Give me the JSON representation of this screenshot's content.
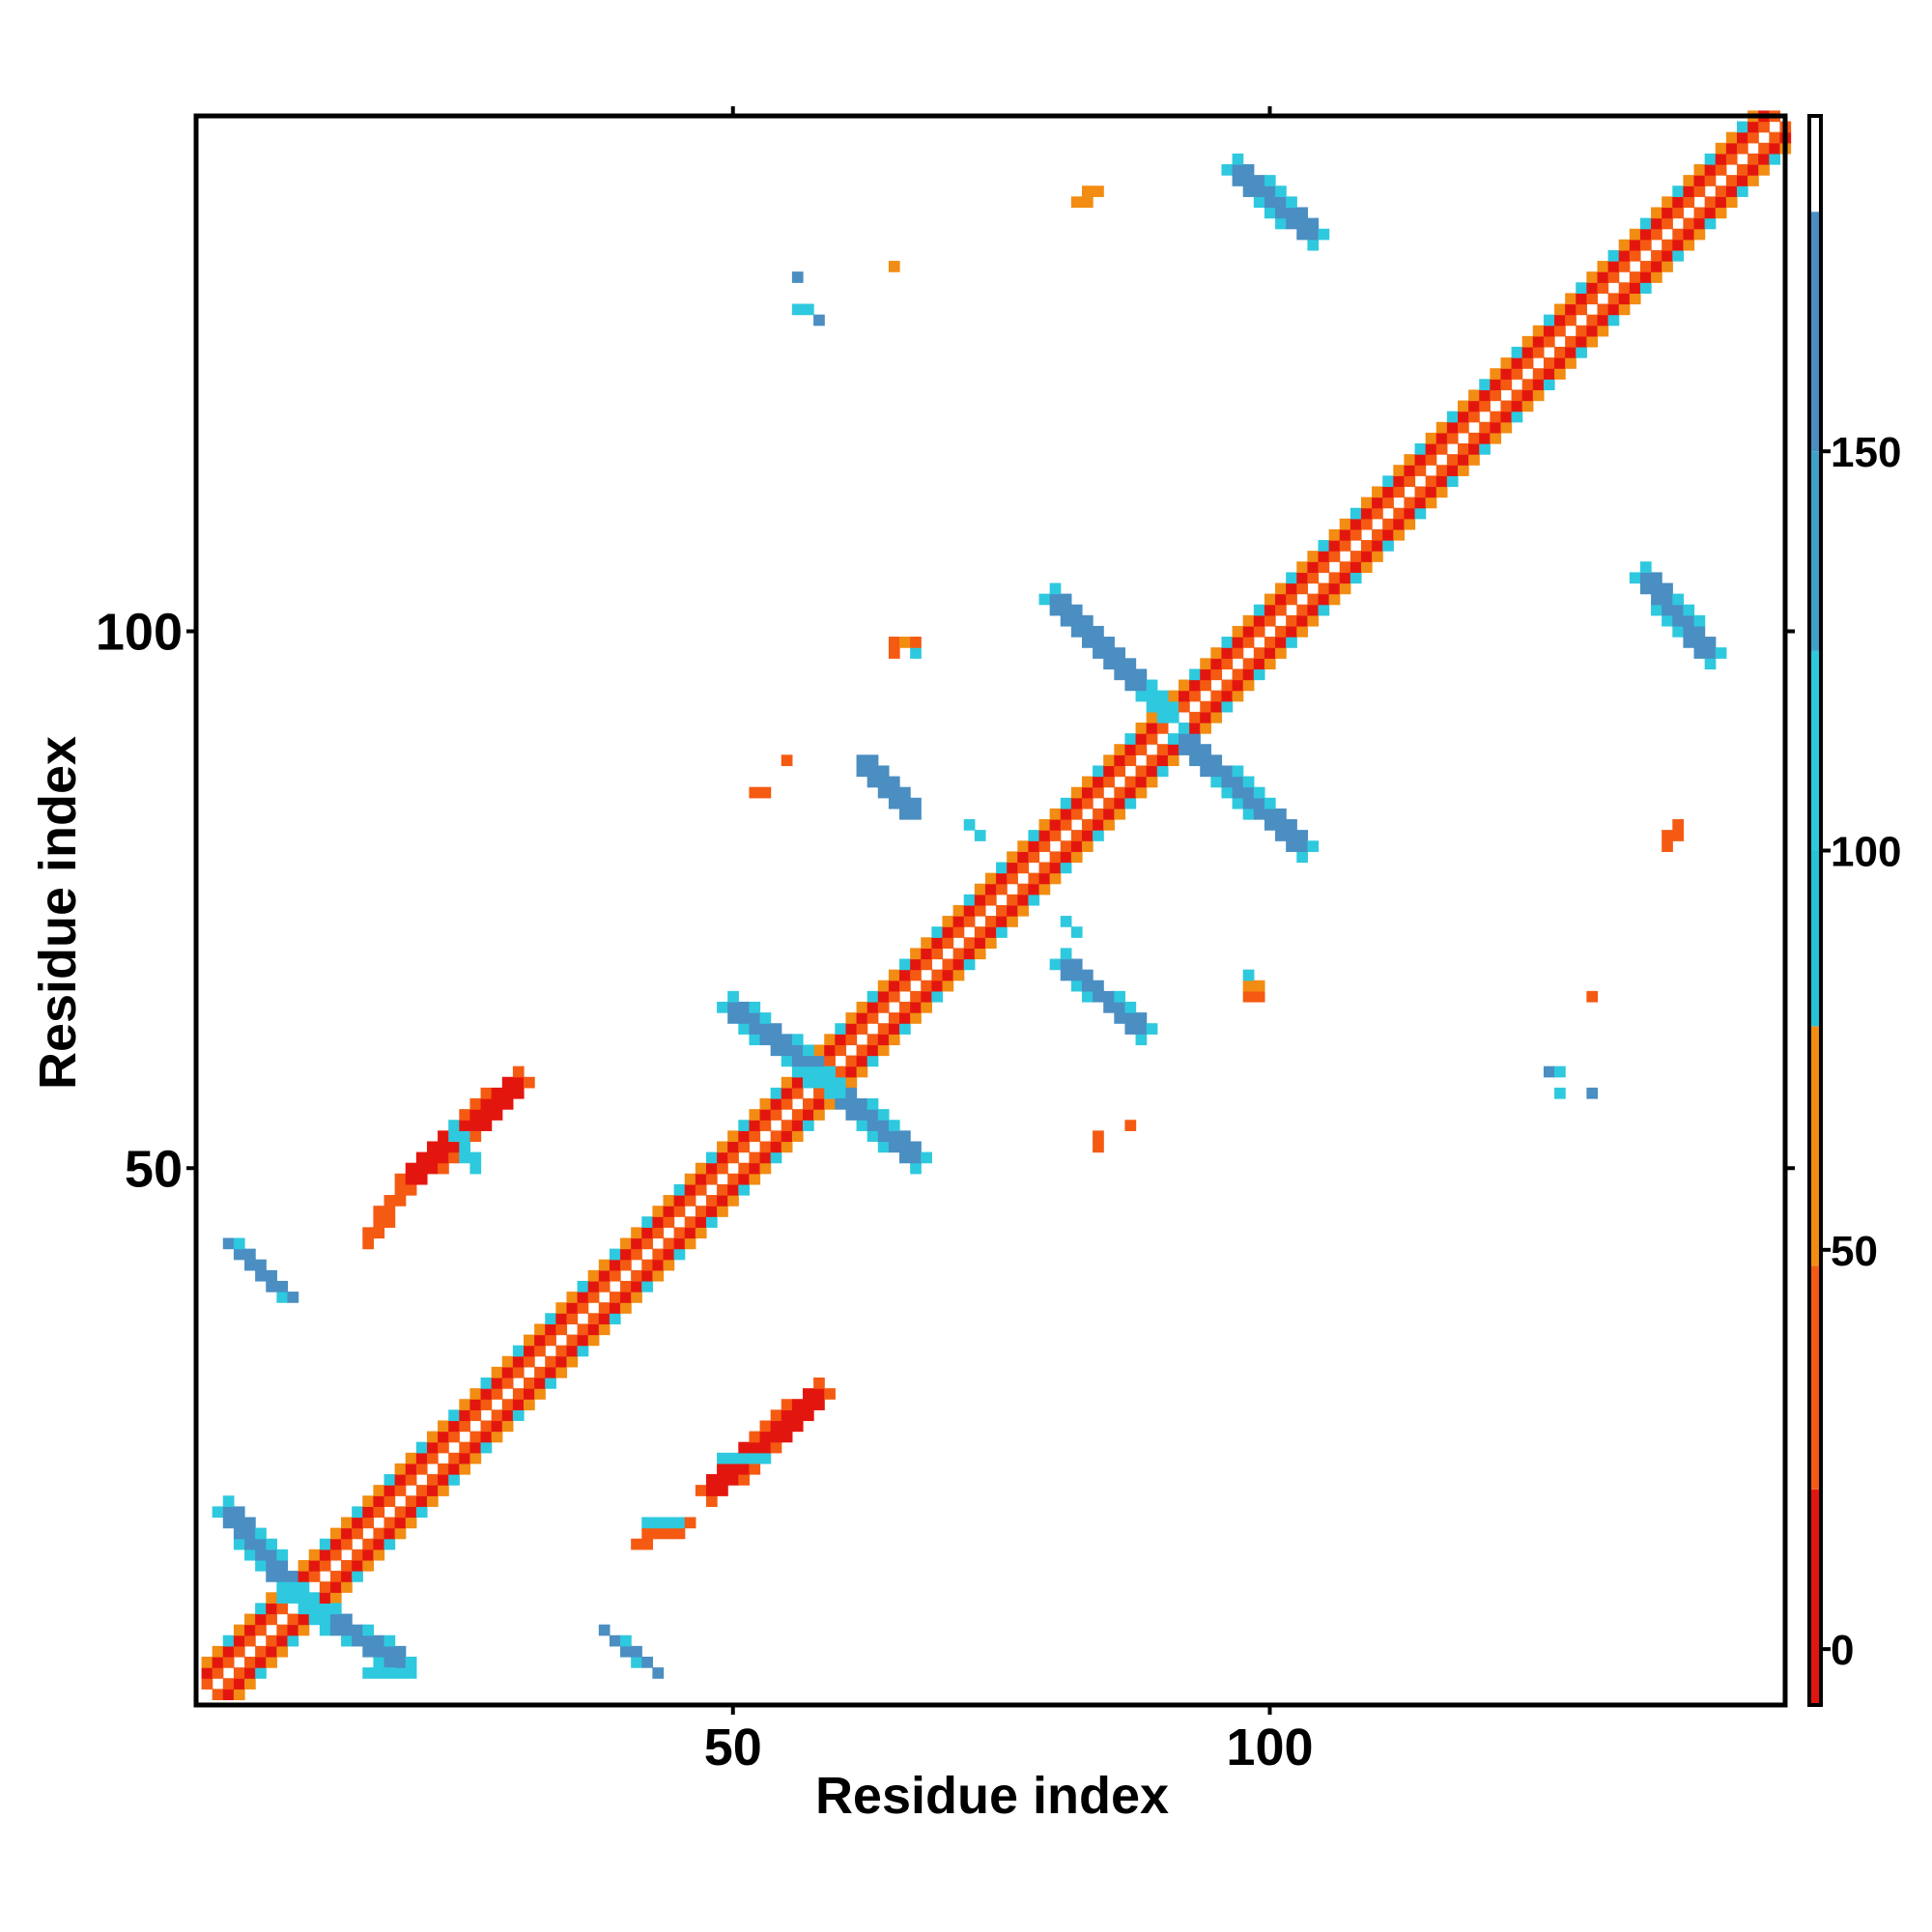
{
  "chart_data": {
    "type": "heatmap",
    "title": "",
    "xlabel": "Residue index",
    "ylabel": "Residue index",
    "xlim": [
      1,
      148
    ],
    "ylim": [
      1,
      148
    ],
    "x_ticks": [
      50,
      100
    ],
    "y_ticks": [
      50,
      100
    ],
    "grid": false,
    "colorbar": {
      "ticks": [
        0,
        50,
        100,
        150
      ],
      "range": [
        -7,
        192
      ],
      "bands": [
        {
          "from": -7,
          "to": 20,
          "color": "#e3160f"
        },
        {
          "from": 20,
          "to": 48,
          "color": "#f55a12"
        },
        {
          "from": 48,
          "to": 78,
          "color": "#f28c12"
        },
        {
          "from": 78,
          "to": 100,
          "color": "#27c3d5"
        },
        {
          "from": 100,
          "to": 125,
          "color": "#2ec9de"
        },
        {
          "from": 125,
          "to": 150,
          "color": "#3fa1c9"
        },
        {
          "from": 150,
          "to": 180,
          "color": "#4a8ec2"
        },
        {
          "from": 180,
          "to": 192,
          "color": "#ffffff"
        }
      ]
    },
    "features": [
      {
        "kind": "diagonal",
        "from": 1,
        "to": 148
      },
      {
        "kind": "strand",
        "x1": 3,
        "y1": 43,
        "x2": 9,
        "y2": 38,
        "w": 1.2,
        "value": 150
      },
      {
        "kind": "strand",
        "x1": 16,
        "y1": 43,
        "x2": 19,
        "y2": 48,
        "w": 1.2,
        "value": 40
      },
      {
        "kind": "strand",
        "x1": 20,
        "y1": 49,
        "x2": 30,
        "y2": 58,
        "w": 2.2,
        "value": 10
      },
      {
        "kind": "strand",
        "x1": 24,
        "y1": 54,
        "x2": 26,
        "y2": 50,
        "w": 1.0,
        "value": 100
      },
      {
        "kind": "strand",
        "x1": 3,
        "y1": 18,
        "x2": 9,
        "y2": 11,
        "w": 2.0,
        "value": 150
      },
      {
        "kind": "strand",
        "x1": 11,
        "y1": 9,
        "x2": 19,
        "y2": 4,
        "w": 2.0,
        "value": 150
      },
      {
        "kind": "strand",
        "x1": 8,
        "y1": 11,
        "x2": 12,
        "y2": 8,
        "w": 1.4,
        "value": 100
      },
      {
        "kind": "strand",
        "x1": 16,
        "y1": 3,
        "x2": 20,
        "y2": 3,
        "w": 1.0,
        "value": 100
      },
      {
        "kind": "strand",
        "x1": 38,
        "y1": 7,
        "x2": 43,
        "y2": 3,
        "w": 1.0,
        "value": 150
      },
      {
        "kind": "strand",
        "x1": 41,
        "y1": 15,
        "x2": 46,
        "y2": 17,
        "w": 1.0,
        "value": 40
      },
      {
        "kind": "strand",
        "x1": 42,
        "y1": 17,
        "x2": 45,
        "y2": 17,
        "w": 1.0,
        "value": 100
      },
      {
        "kind": "strand",
        "x1": 48,
        "y1": 20,
        "x2": 58,
        "y2": 29,
        "w": 2.2,
        "value": 10
      },
      {
        "kind": "strand",
        "x1": 49,
        "y1": 23,
        "x2": 53,
        "y2": 23,
        "w": 1.0,
        "value": 100
      },
      {
        "kind": "strand",
        "x1": 50,
        "y1": 65,
        "x2": 58,
        "y2": 59,
        "w": 2.0,
        "value": 150
      },
      {
        "kind": "strand",
        "x1": 60,
        "y1": 57,
        "x2": 67,
        "y2": 51,
        "w": 2.0,
        "value": 150
      },
      {
        "kind": "strand",
        "x1": 57,
        "y1": 59,
        "x2": 60,
        "y2": 57,
        "w": 1.4,
        "value": 100
      },
      {
        "kind": "strand",
        "x1": 62,
        "y1": 88,
        "x2": 67,
        "y2": 83,
        "w": 1.6,
        "value": 150
      },
      {
        "kind": "strand",
        "x1": 72,
        "y1": 82,
        "x2": 73,
        "y2": 81,
        "w": 1.0,
        "value": 100
      },
      {
        "kind": "strand",
        "x1": 81,
        "y1": 69,
        "x2": 88,
        "y2": 63,
        "w": 1.8,
        "value": 150
      },
      {
        "kind": "strand",
        "x1": 81,
        "y1": 73,
        "x2": 82,
        "y2": 72,
        "w": 1.0,
        "value": 100
      },
      {
        "kind": "strand",
        "x1": 80,
        "y1": 103,
        "x2": 88,
        "y2": 95,
        "w": 2.0,
        "value": 150
      },
      {
        "kind": "strand",
        "x1": 89,
        "y1": 94,
        "x2": 91,
        "y2": 92,
        "w": 1.6,
        "value": 100
      },
      {
        "kind": "strand",
        "x1": 92,
        "y1": 90,
        "x2": 103,
        "y2": 80,
        "w": 2.0,
        "value": 150
      },
      {
        "kind": "strand",
        "x1": 97,
        "y1": 143,
        "x2": 104,
        "y2": 137,
        "w": 2.0,
        "value": 150
      },
      {
        "kind": "strand",
        "x1": 135,
        "y1": 105,
        "x2": 141,
        "y2": 98,
        "w": 2.0,
        "value": 150
      },
      {
        "kind": "strand",
        "x1": 137,
        "y1": 80,
        "x2": 138,
        "y2": 82,
        "w": 1.0,
        "value": 40
      },
      {
        "kind": "strand",
        "x1": 82,
        "y1": 140,
        "x2": 84,
        "y2": 141,
        "w": 1.0,
        "value": 60
      },
      {
        "kind": "cell",
        "x": 65,
        "y": 134,
        "value": 60
      },
      {
        "kind": "cell",
        "x": 56,
        "y": 133,
        "value": 150
      },
      {
        "kind": "cell",
        "x": 56,
        "y": 130,
        "value": 100
      },
      {
        "kind": "cell",
        "x": 57,
        "y": 130,
        "value": 100
      },
      {
        "kind": "cell",
        "x": 58,
        "y": 129,
        "value": 150
      },
      {
        "kind": "cell",
        "x": 65,
        "y": 99,
        "value": 40
      },
      {
        "kind": "cell",
        "x": 65,
        "y": 98,
        "value": 40
      },
      {
        "kind": "cell",
        "x": 66,
        "y": 99,
        "value": 60
      },
      {
        "kind": "cell",
        "x": 67,
        "y": 98,
        "value": 100
      },
      {
        "kind": "cell",
        "x": 67,
        "y": 99,
        "value": 40
      },
      {
        "kind": "cell",
        "x": 52,
        "y": 85,
        "value": 30
      },
      {
        "kind": "cell",
        "x": 53,
        "y": 85,
        "value": 30
      },
      {
        "kind": "cell",
        "x": 55,
        "y": 88,
        "value": 30
      },
      {
        "kind": "cell",
        "x": 98,
        "y": 66,
        "value": 40
      },
      {
        "kind": "cell",
        "x": 99,
        "y": 66,
        "value": 40
      },
      {
        "kind": "cell",
        "x": 98,
        "y": 67,
        "value": 60
      },
      {
        "kind": "cell",
        "x": 98,
        "y": 68,
        "value": 100
      },
      {
        "kind": "cell",
        "x": 99,
        "y": 67,
        "value": 60
      },
      {
        "kind": "cell",
        "x": 84,
        "y": 52,
        "value": 40
      },
      {
        "kind": "cell",
        "x": 84,
        "y": 53,
        "value": 40
      },
      {
        "kind": "cell",
        "x": 87,
        "y": 54,
        "value": 30
      },
      {
        "kind": "cell",
        "x": 130,
        "y": 66,
        "value": 40
      },
      {
        "kind": "cell",
        "x": 126,
        "y": 59,
        "value": 150
      },
      {
        "kind": "cell",
        "x": 127,
        "y": 59,
        "value": 100
      },
      {
        "kind": "cell",
        "x": 127,
        "y": 57,
        "value": 100
      },
      {
        "kind": "cell",
        "x": 130,
        "y": 57,
        "value": 150
      }
    ]
  }
}
